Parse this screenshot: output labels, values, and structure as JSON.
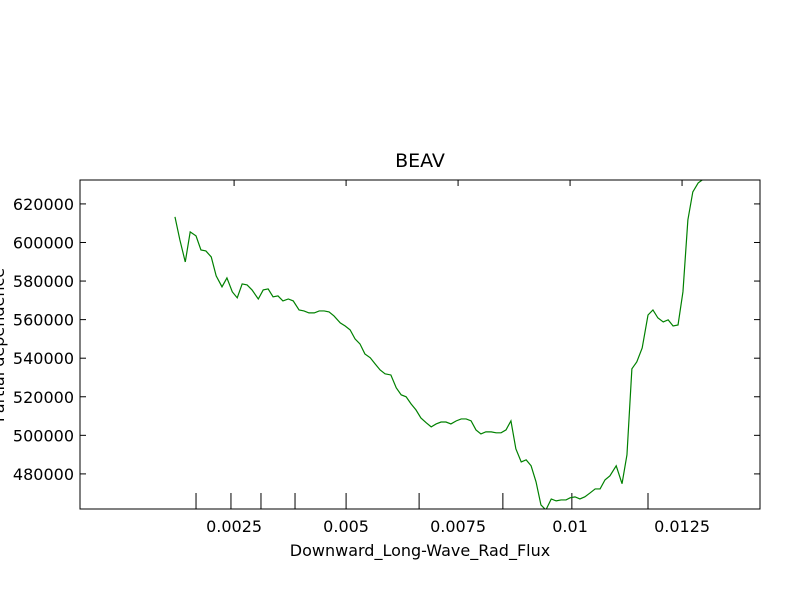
{
  "chart_data": {
    "type": "line",
    "title": "BEAV",
    "x_label": "Downward_Long-Wave_Rad_Flux",
    "y_label": "Partial dependence",
    "x": [
      0.00118,
      0.00129,
      0.00141,
      0.00152,
      0.00165,
      0.00176,
      0.00187,
      0.00199,
      0.0021,
      0.00223,
      0.00234,
      0.00246,
      0.00257,
      0.00268,
      0.00279,
      0.0029,
      0.00304,
      0.00315,
      0.00326,
      0.00337,
      0.00348,
      0.00359,
      0.00371,
      0.00382,
      0.00395,
      0.00406,
      0.00417,
      0.00429,
      0.0044,
      0.00451,
      0.00462,
      0.00473,
      0.00487,
      0.00498,
      0.00509,
      0.0052,
      0.00531,
      0.00542,
      0.00554,
      0.00565,
      0.00576,
      0.00587,
      0.006,
      0.00612,
      0.00623,
      0.00634,
      0.00645,
      0.00656,
      0.00667,
      0.00679,
      0.0069,
      0.00701,
      0.00712,
      0.00723,
      0.00734,
      0.00746,
      0.00757,
      0.00768,
      0.00779,
      0.0079,
      0.00801,
      0.00812,
      0.00824,
      0.00835,
      0.00846,
      0.00857,
      0.00868,
      0.00879,
      0.00891,
      0.00902,
      0.00913,
      0.00924,
      0.00935,
      0.00946,
      0.00958,
      0.00969,
      0.0098,
      0.00991,
      0.01,
      0.01011,
      0.01022,
      0.01033,
      0.01045,
      0.01056,
      0.01067,
      0.01078,
      0.01089,
      0.01103,
      0.01116,
      0.01127,
      0.01138,
      0.01149,
      0.01161,
      0.01174,
      0.01185,
      0.01196,
      0.01208,
      0.01219,
      0.0123,
      0.01241,
      0.01252,
      0.01263,
      0.01274,
      0.01286,
      0.01295
    ],
    "series": [
      {
        "color": "#008000",
        "values": [
          613300,
          601300,
          589900,
          605500,
          603400,
          596100,
          595600,
          592500,
          582700,
          577000,
          581600,
          574400,
          571300,
          578500,
          578000,
          575400,
          570700,
          575400,
          575900,
          571800,
          572300,
          569700,
          570700,
          569700,
          565000,
          564500,
          563500,
          563500,
          564500,
          564500,
          564000,
          561900,
          558300,
          556700,
          554700,
          550000,
          547400,
          542200,
          540200,
          537000,
          533900,
          531900,
          531300,
          524600,
          521000,
          520000,
          516300,
          513200,
          509000,
          506500,
          504400,
          505900,
          506900,
          506900,
          505900,
          507500,
          508500,
          508500,
          507500,
          502800,
          500700,
          501800,
          501800,
          501300,
          501300,
          502800,
          507500,
          493000,
          486200,
          487300,
          484200,
          475900,
          463900,
          461300,
          467000,
          466000,
          466500,
          466500,
          467600,
          468100,
          467000,
          468100,
          470200,
          472200,
          472200,
          476900,
          479000,
          484200,
          474900,
          489900,
          534500,
          538100,
          545300,
          562400,
          565000,
          560900,
          558800,
          559900,
          556700,
          557200,
          574400,
          611700,
          626200,
          630900,
          632400
        ]
      }
    ],
    "rug": [
      0.00165,
      0.00243,
      0.0031,
      0.00386,
      0.005,
      0.00663,
      0.0085,
      0.01004,
      0.01174
    ],
    "xlim": [
      -0.00094,
      0.01424
    ],
    "ylim": [
      461800,
      632400
    ],
    "xticks": [
      0.0025,
      0.005,
      0.0075,
      0.01,
      0.0125
    ],
    "yticks": [
      480000,
      500000,
      520000,
      540000,
      560000,
      580000,
      600000,
      620000
    ]
  }
}
